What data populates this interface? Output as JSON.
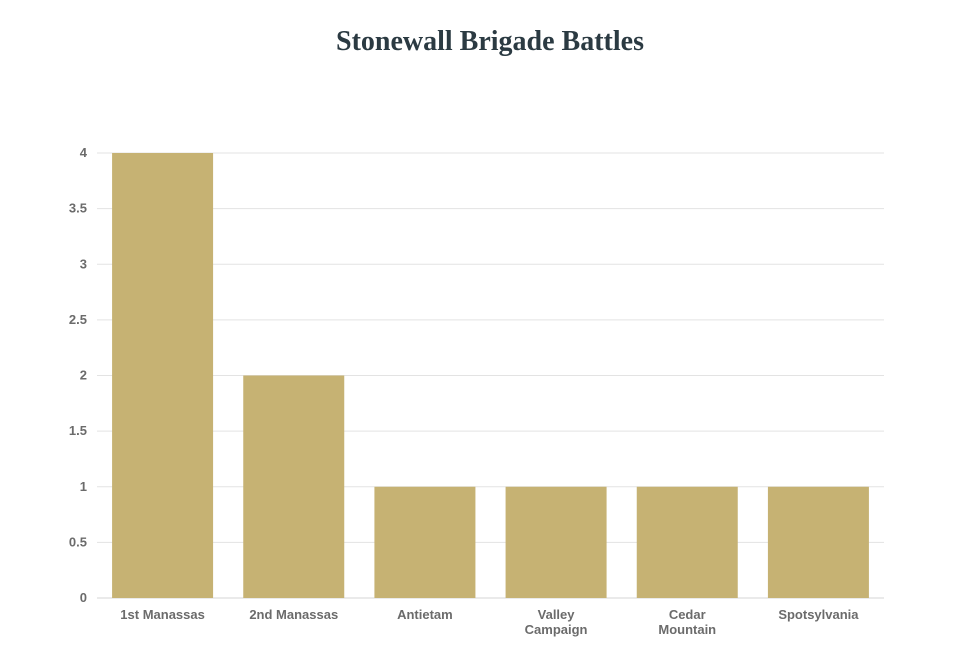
{
  "chart_data": {
    "type": "bar",
    "title": "Stonewall Brigade Battles",
    "xlabel": "",
    "ylabel": "",
    "categories": [
      [
        "1st Manassas"
      ],
      [
        "2nd Manassas"
      ],
      [
        "Antietam"
      ],
      [
        "Valley",
        "Campaign"
      ],
      [
        "Cedar",
        "Mountain"
      ],
      [
        "Spotsylvania"
      ]
    ],
    "values": [
      4,
      2,
      1,
      1,
      1,
      1
    ],
    "ylim": [
      0,
      4
    ],
    "yticks": [
      "0",
      "0.5",
      "1",
      "1.5",
      "2",
      "2.5",
      "3",
      "3.5",
      "4"
    ],
    "grid": true,
    "legend": "none",
    "bar_color": "#c6b273"
  }
}
